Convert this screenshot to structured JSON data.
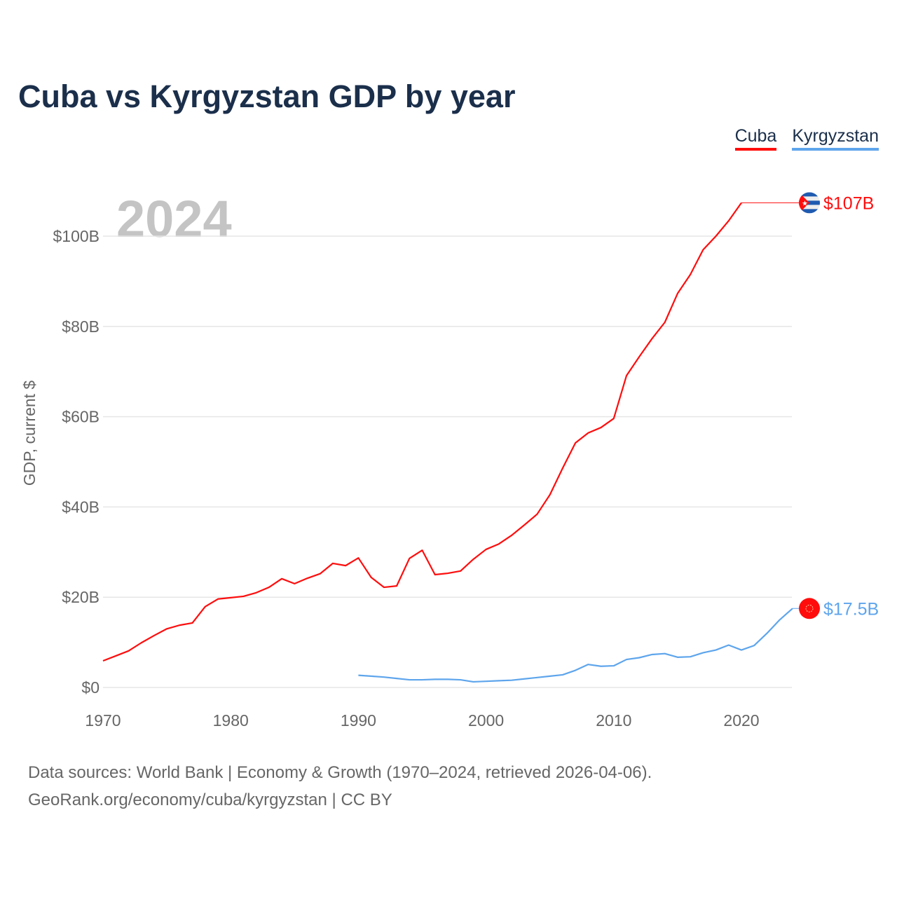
{
  "title": "Cuba vs Kyrgyzstan GDP by year",
  "year_label": "2024",
  "footer": {
    "line1": "Data sources: World Bank | Economy & Growth (1970–2024, retrieved 2026-04-06).",
    "line2": "GeoRank.org/economy/cuba/kyrgyzstan | CC BY"
  },
  "chart_data": {
    "type": "line",
    "title": "Cuba vs Kyrgyzstan GDP by year",
    "xlabel": "",
    "ylabel": "GDP, current $",
    "xlim": [
      1970,
      2024
    ],
    "ylim": [
      0,
      110
    ],
    "x_ticks": [
      "1970",
      "1980",
      "1990",
      "2000",
      "2010",
      "2020"
    ],
    "y_ticks": [
      {
        "v": 0,
        "label": "$0"
      },
      {
        "v": 20,
        "label": "$20B"
      },
      {
        "v": 40,
        "label": "$40B"
      },
      {
        "v": 60,
        "label": "$60B"
      },
      {
        "v": 80,
        "label": "$80B"
      },
      {
        "v": 100,
        "label": "$100B"
      }
    ],
    "grid": true,
    "legend_position": "top-right",
    "units": "billions USD",
    "series": [
      {
        "name": "Cuba",
        "color": "#ff0d0d",
        "end_label": "$107B",
        "icon": "cuba-flag-icon",
        "start_year": 1970,
        "values": [
          5.9,
          7.0,
          8.1,
          9.9,
          11.5,
          13.0,
          13.8,
          14.3,
          17.9,
          19.6,
          19.9,
          20.2,
          21.0,
          22.2,
          24.1,
          23.0,
          24.2,
          25.2,
          27.5,
          27.0,
          28.7,
          24.4,
          22.2,
          22.5,
          28.6,
          30.4,
          25.0,
          25.3,
          25.8,
          28.4,
          30.6,
          31.8,
          33.7,
          36.0,
          38.4,
          42.7,
          48.6,
          54.2,
          56.4,
          57.6,
          59.6,
          69.1,
          73.3,
          77.3,
          80.9,
          87.3,
          91.5,
          97.0,
          100.0,
          103.4,
          107.4
        ]
      },
      {
        "name": "Kyrgyzstan",
        "color": "#5ea5ec",
        "end_label": "$17.5B",
        "icon": "kyrgyzstan-flag-icon",
        "start_year": 1990,
        "values": [
          2.7,
          2.5,
          2.3,
          2.0,
          1.7,
          1.7,
          1.8,
          1.8,
          1.7,
          1.25,
          1.37,
          1.5,
          1.6,
          1.9,
          2.2,
          2.5,
          2.8,
          3.8,
          5.1,
          4.7,
          4.8,
          6.2,
          6.6,
          7.3,
          7.5,
          6.7,
          6.8,
          7.7,
          8.3,
          9.4,
          8.3,
          9.3,
          12.0,
          15.0,
          17.5
        ]
      }
    ]
  }
}
